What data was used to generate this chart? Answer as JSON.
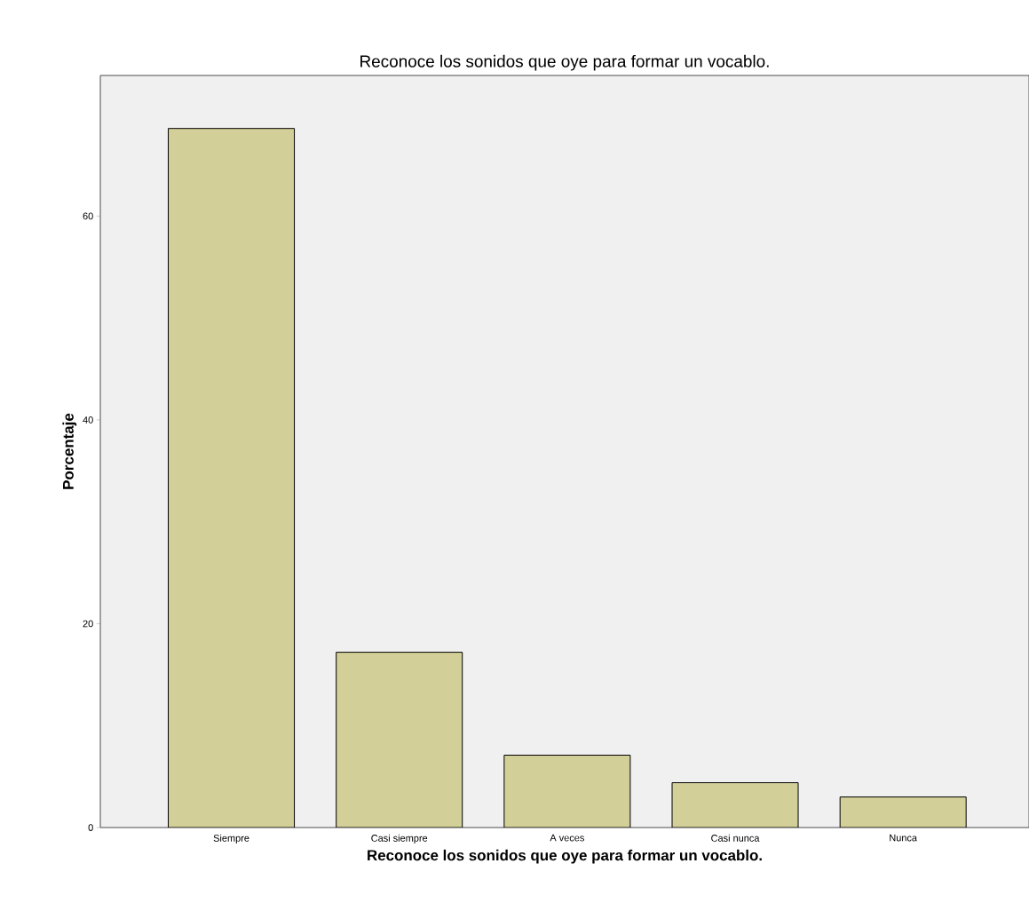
{
  "chart_data": {
    "type": "bar",
    "title": "Reconoce los sonidos que oye para formar un vocablo.",
    "xlabel": "Reconoce los sonidos que oye para formar un vocablo.",
    "ylabel": "Porcentaje",
    "categories": [
      "Siempre",
      "Casi siempre",
      "A veces",
      "Casi nunca",
      "Nunca"
    ],
    "values": [
      68.6,
      17.2,
      7.1,
      4.4,
      3.0
    ],
    "color": "#d3cf98",
    "ylim": [
      0,
      73.8
    ],
    "yticks": [
      0,
      20,
      40,
      60
    ],
    "grid": false
  }
}
